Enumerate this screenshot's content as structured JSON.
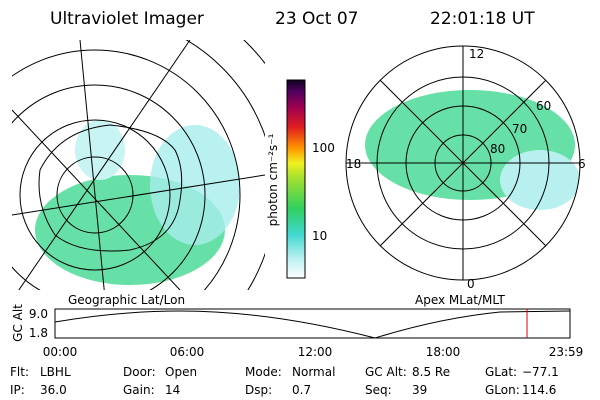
{
  "header": {
    "instrument": "Ultraviolet Imager",
    "date": "23 Oct 07",
    "time": "22:01:18 UT"
  },
  "geo_panel": {
    "label": "Geographic Lat/Lon"
  },
  "colorbar": {
    "label": "photon cm⁻²s⁻¹",
    "ticks": [
      "100",
      "10"
    ]
  },
  "polar_panel": {
    "label": "Apex MLat/MLT",
    "mlt_labels": [
      "12",
      "18",
      "6",
      "0"
    ],
    "lat_labels": [
      "60",
      "70",
      "80"
    ]
  },
  "altitude_plot": {
    "ylabel": "GC Alt",
    "yticks": [
      "9.0",
      "1.8"
    ],
    "xticks": [
      "00:00",
      "06:00",
      "12:00",
      "18:00",
      "23:59"
    ]
  },
  "footer": {
    "rows": [
      [
        {
          "key": "Flt:",
          "value": "LBHL"
        },
        {
          "key": "Door:",
          "value": "Open"
        },
        {
          "key": "Mode:",
          "value": "Normal"
        },
        {
          "key": "GC Alt:",
          "value": "8.5 Re"
        },
        {
          "key": "GLat:",
          "value": "−77.1"
        }
      ],
      [
        {
          "key": "IP:",
          "value": "36.0"
        },
        {
          "key": "Gain:",
          "value": "14"
        },
        {
          "key": "Dsp:",
          "value": "0.7"
        },
        {
          "key": "Seq:",
          "value": "39"
        },
        {
          "key": "GLon:",
          "value": "114.6"
        }
      ]
    ]
  }
}
